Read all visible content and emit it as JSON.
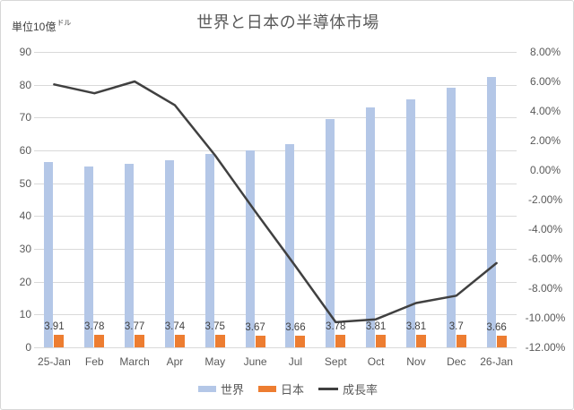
{
  "title": "世界と日本の半導体市場",
  "unit_label": {
    "main": "単位10億",
    "small": "ドル"
  },
  "legend": [
    {
      "label": "世界",
      "swatch": "rect",
      "color": "#b4c7e7"
    },
    {
      "label": "日本",
      "swatch": "rect",
      "color": "#ed7d31"
    },
    {
      "label": "成長率",
      "swatch": "line",
      "color": "#404040"
    }
  ],
  "chart_data": {
    "type": "bar",
    "subtype": "clustered-bars-with-line-combo",
    "title": "世界と日本の半導体市場",
    "unit_note": "単位10億ドル",
    "categories": [
      "25-Jan",
      "Feb",
      "March",
      "Apr",
      "May",
      "June",
      "Jul",
      "Sept",
      "Oct",
      "Nov",
      "Dec",
      "26-Jan"
    ],
    "series": [
      {
        "name": "世界",
        "type": "bar",
        "axis": "left",
        "color": "#b4c7e7",
        "values": [
          56.5,
          55,
          56,
          57,
          59,
          60,
          62,
          69.5,
          73,
          75.5,
          79,
          82.5
        ]
      },
      {
        "name": "日本",
        "type": "bar",
        "axis": "left",
        "color": "#ed7d31",
        "values": [
          3.91,
          3.78,
          3.77,
          3.74,
          3.75,
          3.67,
          3.66,
          3.78,
          3.81,
          3.81,
          3.7,
          3.66
        ],
        "data_labels": [
          "3.91",
          "3.78",
          "3.77",
          "3.74",
          "3.75",
          "3.67",
          "3.66",
          "3.78",
          "3.81",
          "3.81",
          "3.7",
          "3.66"
        ]
      },
      {
        "name": "成長率",
        "type": "line",
        "axis": "right",
        "color": "#404040",
        "values": [
          5.8,
          5.2,
          6.0,
          4.4,
          1.0,
          -2.8,
          -6.5,
          -10.3,
          -10.1,
          -9.0,
          -8.5,
          -6.3
        ]
      }
    ],
    "left_axis": {
      "min": 0,
      "max": 90,
      "step": 10,
      "ticks": [
        "90",
        "80",
        "70",
        "60",
        "50",
        "40",
        "30",
        "20",
        "10",
        "0"
      ]
    },
    "right_axis": {
      "min": -12,
      "max": 8,
      "step": 2,
      "ticks": [
        "8.00%",
        "6.00%",
        "4.00%",
        "2.00%",
        "0.00%",
        "-2.00%",
        "-4.00%",
        "-6.00%",
        "-8.00%",
        "-10.00%",
        "-12.00%"
      ]
    },
    "grid": true,
    "gridline_color": "#d9d9d9",
    "text_color": "#595959",
    "legend_position": "bottom"
  }
}
